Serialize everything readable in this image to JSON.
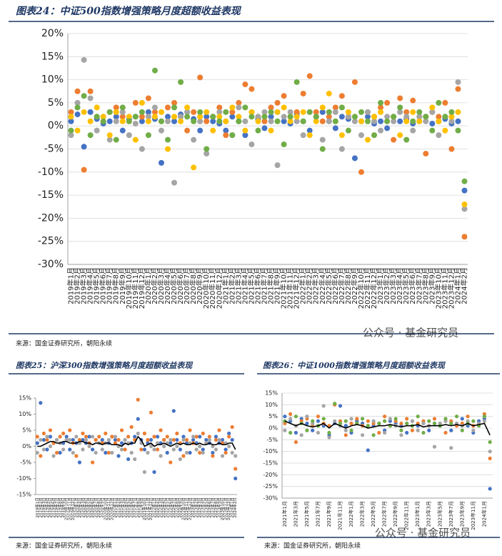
{
  "chart_data": [
    {
      "type": "scatter",
      "title": "图表24：中证500指数增强策略月度超额收益表现",
      "source": "来源：国金证券研究所，朝阳永续",
      "watermark": "公众号 · 基金研究员",
      "categories": [
        "2019年1月",
        "2019年2月",
        "2019年3月",
        "2019年4月",
        "2019年5月",
        "2019年6月",
        "2019年7月",
        "2019年8月",
        "2019年9月",
        "2019年10月",
        "2019年11月",
        "2019年12月",
        "2020年1月",
        "2020年2月",
        "2020年3月",
        "2020年4月",
        "2020年5月",
        "2020年6月",
        "2020年7月",
        "2020年8月",
        "2020年9月",
        "2020年10月",
        "2020年11月",
        "2020年12月",
        "2021年1月",
        "2021年2月",
        "2021年3月",
        "2021年4月",
        "2021年5月",
        "2021年6月",
        "2021年7月",
        "2021年8月",
        "2021年9月",
        "2021年10月",
        "2021年11月",
        "2021年12月",
        "2022年1月",
        "2022年2月",
        "2022年3月",
        "2022年4月",
        "2022年5月",
        "2022年6月",
        "2022年7月",
        "2022年8月",
        "2022年9月",
        "2022年10月",
        "2022年11月",
        "2022年12月",
        "2023年1月",
        "2023年2月",
        "2023年3月",
        "2023年4月",
        "2023年5月",
        "2023年6月",
        "2023年7月",
        "2023年8月",
        "2023年9月",
        "2023年10月",
        "2023年11月",
        "2023年12月",
        "2024年1月",
        "2024年2月"
      ],
      "series": [
        {
          "color": "#4472c4",
          "values": [
            1,
            2.5,
            -4.5,
            3,
            1.5,
            0.5,
            1,
            2,
            -1,
            1.5,
            2,
            1,
            3,
            1.5,
            -8,
            2,
            1,
            2.5,
            3,
            1.5,
            -1,
            2,
            1,
            0.5,
            -1,
            2,
            1,
            -2,
            3,
            1.5,
            -0.5,
            2,
            3,
            1,
            0.5,
            2.5,
            1,
            -1,
            2,
            3,
            1,
            -0.5,
            2,
            1.5,
            -7,
            1,
            2,
            0.5,
            1,
            -0.5,
            2,
            1,
            1.5,
            0.5,
            1,
            2,
            0.5,
            1,
            1.5,
            0.5,
            1,
            -14
          ]
        },
        {
          "color": "#ed7d31",
          "values": [
            3,
            7.5,
            -9.5,
            7.5,
            2,
            1,
            3,
            4,
            2,
            1,
            5,
            2,
            6,
            3,
            1,
            4,
            5,
            2,
            -1,
            3,
            10.5,
            1,
            2,
            4,
            -2,
            3,
            5,
            9,
            8,
            2,
            1,
            4,
            5,
            6.5,
            2,
            3,
            7,
            10.8,
            3,
            1,
            2,
            4,
            6.5,
            2,
            9.5,
            -10,
            3,
            2,
            4,
            5,
            -3,
            6,
            3,
            5.5,
            2,
            -6,
            3,
            2,
            5,
            -5,
            8,
            -24
          ]
        },
        {
          "color": "#a5a5a5",
          "values": [
            -2,
            5,
            14.3,
            6,
            -1,
            2,
            -3,
            1,
            3,
            -2,
            0.5,
            -5,
            2,
            4,
            -1,
            1,
            -12.3,
            2,
            3,
            -3,
            1,
            -6,
            2,
            3,
            1,
            -2,
            4,
            1,
            -4,
            2,
            3,
            1,
            -8.5,
            2,
            3,
            1,
            -2,
            3,
            2,
            -3,
            1,
            3,
            -5,
            2,
            1,
            -2,
            3,
            1,
            -1,
            2,
            1,
            3,
            2,
            -1,
            2,
            1,
            3,
            -2,
            2,
            1,
            9.5,
            -18
          ]
        },
        {
          "color": "#ffc000",
          "values": [
            2,
            -1,
            3,
            1,
            4,
            2,
            -2,
            3,
            1,
            2,
            -3,
            5,
            1,
            2,
            3,
            -5,
            2,
            1,
            4,
            -9,
            2,
            3,
            -1,
            2,
            1,
            4,
            2,
            -1,
            3,
            1,
            2,
            -1,
            3,
            4,
            1,
            2,
            3,
            -2,
            1,
            4,
            7,
            1,
            -2,
            3,
            2,
            1,
            -3,
            2,
            3,
            1,
            2,
            -2,
            1,
            3,
            1,
            2,
            4,
            1,
            -1,
            2,
            3,
            -17
          ]
        },
        {
          "color": "#70ad47",
          "values": [
            -1,
            4,
            6.5,
            -2,
            2,
            1,
            3,
            -3,
            4,
            1,
            2,
            3,
            -2,
            12,
            1,
            -3,
            4,
            9.5,
            2,
            1,
            3,
            -5,
            2,
            1,
            3,
            -2,
            1,
            4,
            2,
            -1,
            2,
            3,
            1,
            -4,
            2,
            9.5,
            1,
            3,
            2,
            -5,
            3,
            1,
            4,
            -1,
            2,
            3,
            1,
            -2,
            5,
            1,
            2,
            4,
            -3,
            1,
            3,
            2,
            -1,
            5,
            2,
            3,
            -1,
            -12
          ]
        }
      ],
      "ylim": [
        -30,
        20
      ],
      "yticks": [
        {
          "value": -30,
          "label": "-30%"
        },
        {
          "value": -25,
          "label": "-25%"
        },
        {
          "value": -20,
          "label": "-20%"
        },
        {
          "value": -15,
          "label": "-15%"
        },
        {
          "value": -10,
          "label": "-10%"
        },
        {
          "value": -5,
          "label": "-5%"
        },
        {
          "value": 0,
          "label": "0%"
        },
        {
          "value": 5,
          "label": "5%"
        },
        {
          "value": 10,
          "label": "10%"
        },
        {
          "value": 15,
          "label": "15%"
        },
        {
          "value": 20,
          "label": "20%"
        }
      ],
      "grid": true
    },
    {
      "type": "scatter",
      "title": "图表25：沪深300指数增强策略月度超额收益表现",
      "source": "来源：国金证券研究所，朝阳永续",
      "categories": [
        "2019年1月",
        "2019年2月",
        "2019年3月",
        "2019年4月",
        "2019年5月",
        "2019年6月",
        "2019年7月",
        "2019年8月",
        "2019年9月",
        "2019年10月",
        "2019年11月",
        "2019年12月",
        "2020年1月",
        "2020年2月",
        "2020年3月",
        "2020年4月",
        "2020年5月",
        "2020年6月",
        "2020年7月",
        "2020年8月",
        "2020年9月",
        "2020年10月",
        "2020年11月",
        "2020年12月",
        "2021年1月",
        "2021年2月",
        "2021年3月",
        "2021年4月",
        "2021年5月",
        "2021年6月",
        "2021年7月",
        "2021年8月",
        "2021年9月",
        "2021年10月",
        "2021年11月",
        "2021年12月",
        "2022年1月",
        "2022年2月",
        "2022年3月",
        "2022年4月",
        "2022年5月",
        "2022年6月",
        "2022年7月",
        "2022年8月",
        "2022年9月",
        "2022年10月",
        "2022年11月",
        "2022年12月",
        "2023年1月",
        "2023年2月",
        "2023年3月",
        "2023年4月",
        "2023年5月",
        "2023年6月",
        "2023年7月",
        "2023年8月",
        "2023年9月",
        "2023年10月",
        "2023年11月",
        "2023年12月",
        "2024年1月",
        "2024年2月"
      ],
      "series": [
        {
          "color": "#4472c4",
          "values": [
            1,
            13.5,
            2,
            -1,
            3,
            1,
            2,
            -2,
            1,
            3,
            -1,
            2,
            1,
            -5,
            2,
            1,
            3,
            -1,
            2,
            1,
            2,
            -2,
            1,
            3,
            2,
            -3,
            1,
            2,
            -4,
            1,
            3,
            8.5,
            2,
            -1,
            1,
            2,
            -8,
            3,
            1,
            2,
            -2,
            1,
            11,
            2,
            -1,
            3,
            1,
            -2,
            2,
            1,
            3,
            -1,
            2,
            1,
            -2,
            3,
            1,
            2,
            -1,
            4,
            2,
            -10
          ]
        },
        {
          "color": "#ed7d31",
          "values": [
            3,
            -3,
            4,
            2,
            5,
            1,
            -2,
            3,
            4,
            2,
            5,
            1,
            -3,
            2,
            4,
            3,
            1,
            -5,
            2,
            3,
            1,
            4,
            -2,
            3,
            1,
            2,
            5,
            -1,
            3,
            6,
            2,
            14.5,
            -1,
            4,
            2,
            10.5,
            3,
            -1,
            5,
            2,
            3,
            -5,
            2,
            4,
            1,
            -3,
            2,
            5,
            1,
            3,
            -2,
            4,
            1,
            3,
            -3,
            2,
            5,
            1,
            -2,
            3,
            6,
            -7
          ]
        },
        {
          "color": "#a5a5a5",
          "values": [
            -2,
            2,
            -1,
            3,
            0,
            -3,
            2,
            1,
            -1,
            2,
            2,
            -2,
            3,
            1,
            -1,
            2,
            0,
            3,
            -2,
            1,
            -1,
            1,
            2,
            -2,
            3,
            0,
            -1,
            2,
            1,
            -2,
            -4,
            4,
            1,
            -8,
            -2,
            0,
            -1,
            1,
            -3,
            0,
            1,
            2,
            -1,
            0,
            -4,
            2,
            -2,
            1,
            3,
            -1,
            0,
            -2,
            1,
            2,
            0,
            -1,
            2,
            -3,
            1,
            0,
            -2,
            -3
          ]
        },
        {
          "color": "#000000",
          "line": true,
          "values": [
            0,
            0,
            0.5,
            1,
            1.5,
            1.5,
            1,
            1,
            1.5,
            1.5,
            1,
            1,
            1,
            1.5,
            1.5,
            1,
            1,
            0.5,
            1,
            1,
            0.5,
            1,
            1,
            0.5,
            0.5,
            0.5,
            0,
            1,
            0.5,
            1,
            1,
            3,
            2,
            0,
            0.5,
            1,
            0,
            0.5,
            0.5,
            1,
            0.5,
            0,
            0.5,
            1,
            0.5,
            1,
            0.5,
            0.5,
            1,
            0.5,
            1,
            0.5,
            0.5,
            1,
            0.5,
            0.5,
            1,
            0.5,
            0.5,
            1,
            1,
            -1
          ]
        }
      ],
      "ylim": [
        -15,
        15
      ],
      "yticks": [
        {
          "value": -15,
          "label": "-15%"
        },
        {
          "value": -10,
          "label": "-10%"
        },
        {
          "value": -5,
          "label": "-5%"
        },
        {
          "value": 0,
          "label": "0%"
        },
        {
          "value": 5,
          "label": "5%"
        },
        {
          "value": 10,
          "label": "10%"
        },
        {
          "value": 15,
          "label": "15%"
        }
      ],
      "grid": false
    },
    {
      "type": "scatter",
      "title": "图表26：中证1000指数增强策略月度超额收益表现",
      "source": "来源：国金证券研究所，朝阳永续",
      "watermark": "公众号 · 基金研究员",
      "categories": [
        "2021年1月",
        null,
        "2021年3月",
        null,
        "2021年5月",
        null,
        "2021年7月",
        null,
        "2021年9月",
        null,
        "2021年11月",
        null,
        "2022年1月",
        null,
        "2022年3月",
        null,
        "2022年5月",
        null,
        "2022年7月",
        null,
        "2022年9月",
        null,
        "2022年11月",
        null,
        "2023年1月",
        null,
        "2023年3月",
        null,
        "2023年5月",
        null,
        "2023年7月",
        null,
        "2023年9月",
        null,
        "2023年11月",
        null,
        "2024年1月",
        null
      ],
      "series": [
        {
          "color": "#4472c4",
          "values": [
            5,
            3,
            -2,
            4,
            2,
            -1,
            3,
            1,
            -3,
            2,
            9.5,
            1,
            -2,
            3,
            2,
            -9.5,
            1,
            2,
            -1,
            3,
            2,
            1,
            -2,
            3,
            1,
            2,
            -1,
            2,
            1,
            3,
            -1,
            2,
            4,
            1,
            -2,
            3,
            4,
            -26
          ]
        },
        {
          "color": "#ed7d31",
          "values": [
            2,
            6,
            -6,
            3,
            4,
            1,
            5,
            2,
            1,
            10,
            3,
            -3,
            2,
            4,
            1,
            3,
            2,
            -2,
            5,
            1,
            3,
            2,
            4,
            -1,
            2,
            3,
            1,
            4,
            2,
            -2,
            3,
            1,
            2,
            5,
            1,
            2,
            6,
            -13
          ]
        },
        {
          "color": "#a5a5a5",
          "values": [
            -1,
            4,
            1,
            -3,
            5,
            2,
            -2,
            9.5,
            -4,
            3,
            1,
            -1,
            4,
            2,
            -3,
            1,
            3,
            2,
            -2,
            4,
            1,
            -3,
            2,
            3,
            -1,
            2,
            1,
            -8,
            2,
            3,
            -8.5,
            2,
            1,
            3,
            -1,
            2,
            3,
            -10
          ]
        },
        {
          "color": "#70ad47",
          "values": [
            3,
            -2,
            5,
            2,
            -1,
            3,
            1,
            4,
            -2,
            10.5,
            2,
            3,
            -1,
            2,
            4,
            1,
            -3,
            2,
            3,
            1,
            4,
            -1,
            2,
            1,
            5,
            -2,
            3,
            2,
            1,
            4,
            2,
            5,
            -1,
            2,
            3,
            1,
            5,
            -6
          ]
        },
        {
          "color": "#000000",
          "line": true,
          "values": [
            3,
            2,
            1,
            2,
            1,
            0.5,
            1,
            2,
            0,
            2,
            1,
            0,
            1,
            1.5,
            1,
            0,
            0.5,
            1,
            1,
            1.5,
            1,
            0.5,
            1,
            1,
            1.5,
            0.5,
            1,
            1,
            1,
            1.5,
            1,
            1.5,
            1,
            2,
            1,
            1.5,
            2,
            -3
          ]
        }
      ],
      "ylim": [
        -30,
        15
      ],
      "yticks": [
        {
          "value": -30,
          "label": "-30%"
        },
        {
          "value": -25,
          "label": "-25%"
        },
        {
          "value": -20,
          "label": "-20%"
        },
        {
          "value": -15,
          "label": "-15%"
        },
        {
          "value": -10,
          "label": "-10%"
        },
        {
          "value": -5,
          "label": "-5%"
        },
        {
          "value": 0,
          "label": "0%"
        },
        {
          "value": 5,
          "label": "5%"
        },
        {
          "value": 10,
          "label": "10%"
        },
        {
          "value": 15,
          "label": "15%"
        }
      ],
      "grid": true
    }
  ]
}
